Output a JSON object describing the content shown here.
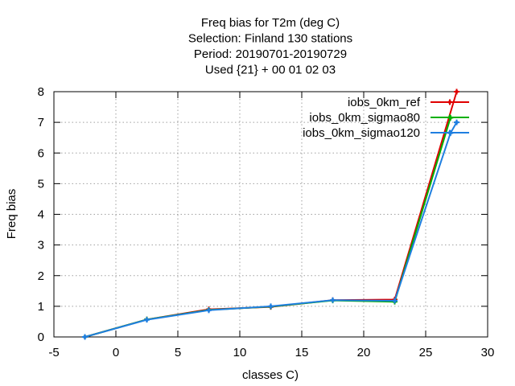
{
  "chart_data": {
    "type": "line",
    "title_lines": [
      "Freq bias  for T2m (deg C)",
      "Selection: Finland    130 stations",
      "Period: 20190701-20190729",
      "Used {21} + 00 01 02 03"
    ],
    "xlabel": "classes C)",
    "ylabel": "Freq bias",
    "xlim": [
      -5,
      30
    ],
    "ylim": [
      0,
      8
    ],
    "xticks": [
      -5,
      0,
      5,
      10,
      15,
      20,
      25,
      30
    ],
    "yticks": [
      0,
      1,
      2,
      3,
      4,
      5,
      6,
      7,
      8
    ],
    "grid": true,
    "legend_position": "top-right",
    "series": [
      {
        "name": "iobs_0km_ref",
        "color": "#e00000",
        "x": [
          -2.5,
          2.5,
          7.5,
          12.5,
          17.5,
          22.5,
          27.5
        ],
        "y": [
          0.0,
          0.57,
          0.9,
          0.98,
          1.2,
          1.22,
          8.0
        ]
      },
      {
        "name": "iobs_0km_sigmao80",
        "color": "#00b000",
        "x": [
          -2.5,
          2.5,
          7.5,
          12.5,
          17.5,
          22.5,
          27.0
        ],
        "y": [
          0.0,
          0.57,
          0.88,
          0.99,
          1.19,
          1.15,
          7.15
        ]
      },
      {
        "name": "iobs_0km_sigmao120",
        "color": "#1f7fe0",
        "x": [
          -2.5,
          2.5,
          7.5,
          12.5,
          17.5,
          22.5,
          27.0,
          27.5
        ],
        "y": [
          0.0,
          0.56,
          0.87,
          1.0,
          1.2,
          1.18,
          6.65,
          7.0
        ]
      }
    ]
  }
}
